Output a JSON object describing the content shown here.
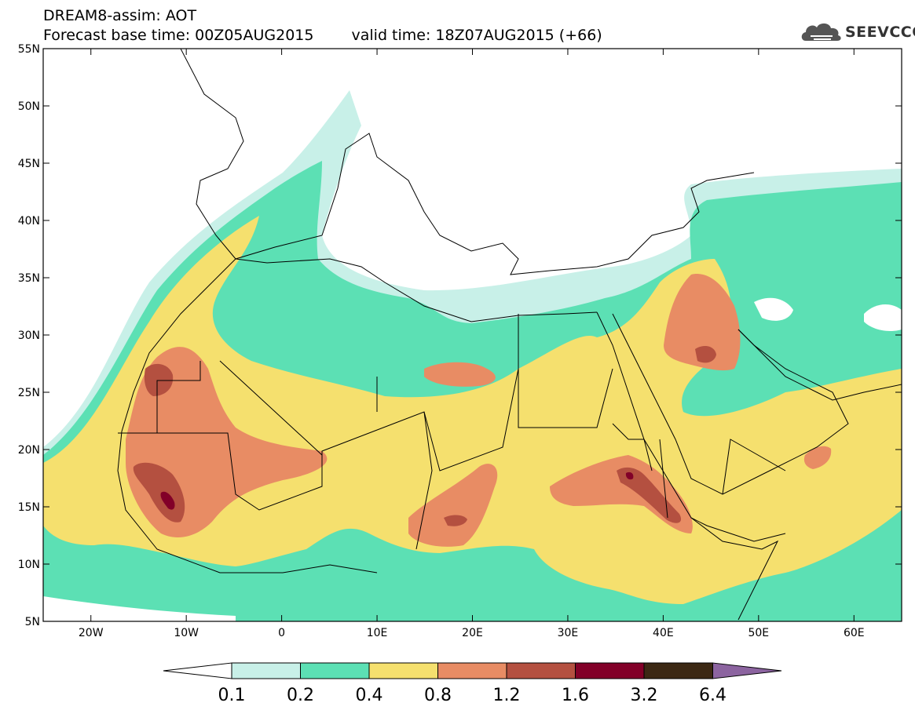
{
  "header": {
    "line1": "DREAM8-assim: AOT",
    "base_time": "Forecast base time: 00Z05AUG2015",
    "valid_time": "valid time: 18Z07AUG2015 (+66)"
  },
  "logo": {
    "text": "SEEVCCC",
    "icon": "cloud-logo-icon"
  },
  "map": {
    "lon_range": [
      -25,
      65
    ],
    "lat_range": [
      5,
      55
    ],
    "lon_ticks": [
      {
        "v": -20,
        "label": "20W"
      },
      {
        "v": -10,
        "label": "10W"
      },
      {
        "v": 0,
        "label": "0"
      },
      {
        "v": 10,
        "label": "10E"
      },
      {
        "v": 20,
        "label": "20E"
      },
      {
        "v": 30,
        "label": "30E"
      },
      {
        "v": 40,
        "label": "40E"
      },
      {
        "v": 50,
        "label": "50E"
      },
      {
        "v": 60,
        "label": "60E"
      }
    ],
    "lat_ticks": [
      {
        "v": 55,
        "label": "55N"
      },
      {
        "v": 50,
        "label": "50N"
      },
      {
        "v": 45,
        "label": "45N"
      },
      {
        "v": 40,
        "label": "40N"
      },
      {
        "v": 35,
        "label": "35N"
      },
      {
        "v": 30,
        "label": "30N"
      },
      {
        "v": 25,
        "label": "25N"
      },
      {
        "v": 20,
        "label": "20N"
      },
      {
        "v": 15,
        "label": "15N"
      },
      {
        "v": 10,
        "label": "10N"
      },
      {
        "v": 5,
        "label": "5N"
      }
    ]
  },
  "colorbar": {
    "labels": [
      "0.1",
      "0.2",
      "0.4",
      "0.8",
      "1.2",
      "1.6",
      "3.2",
      "6.4"
    ],
    "colors": [
      "#ffffff",
      "#c8f0e8",
      "#5ce0b4",
      "#f5e06e",
      "#e88c64",
      "#b45040",
      "#820028",
      "#3c2814",
      "#8c64a0"
    ]
  }
}
